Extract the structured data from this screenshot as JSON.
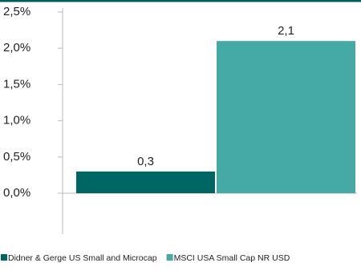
{
  "chart_data": {
    "type": "bar",
    "categories": [
      null
    ],
    "series": [
      {
        "name": "Didner & Gerge US Small and Microcap",
        "color": "#006663",
        "values": [
          0.3
        ],
        "value_labels": [
          "0,3"
        ]
      },
      {
        "name": "MSCI USA Small Cap NR USD",
        "color": "#45aaa5",
        "values": [
          2.1
        ],
        "value_labels": [
          "2,1"
        ]
      }
    ],
    "ylim": [
      0,
      2.5
    ],
    "yticks": [
      {
        "value": 0,
        "label": "0,0%"
      },
      {
        "value": 0.5,
        "label": "0,5%"
      },
      {
        "value": 1,
        "label": "1,0%"
      },
      {
        "value": 1.5,
        "label": "1,5%"
      },
      {
        "value": 2,
        "label": "2,0%"
      },
      {
        "value": 2.5,
        "label": "2,5%"
      }
    ]
  }
}
